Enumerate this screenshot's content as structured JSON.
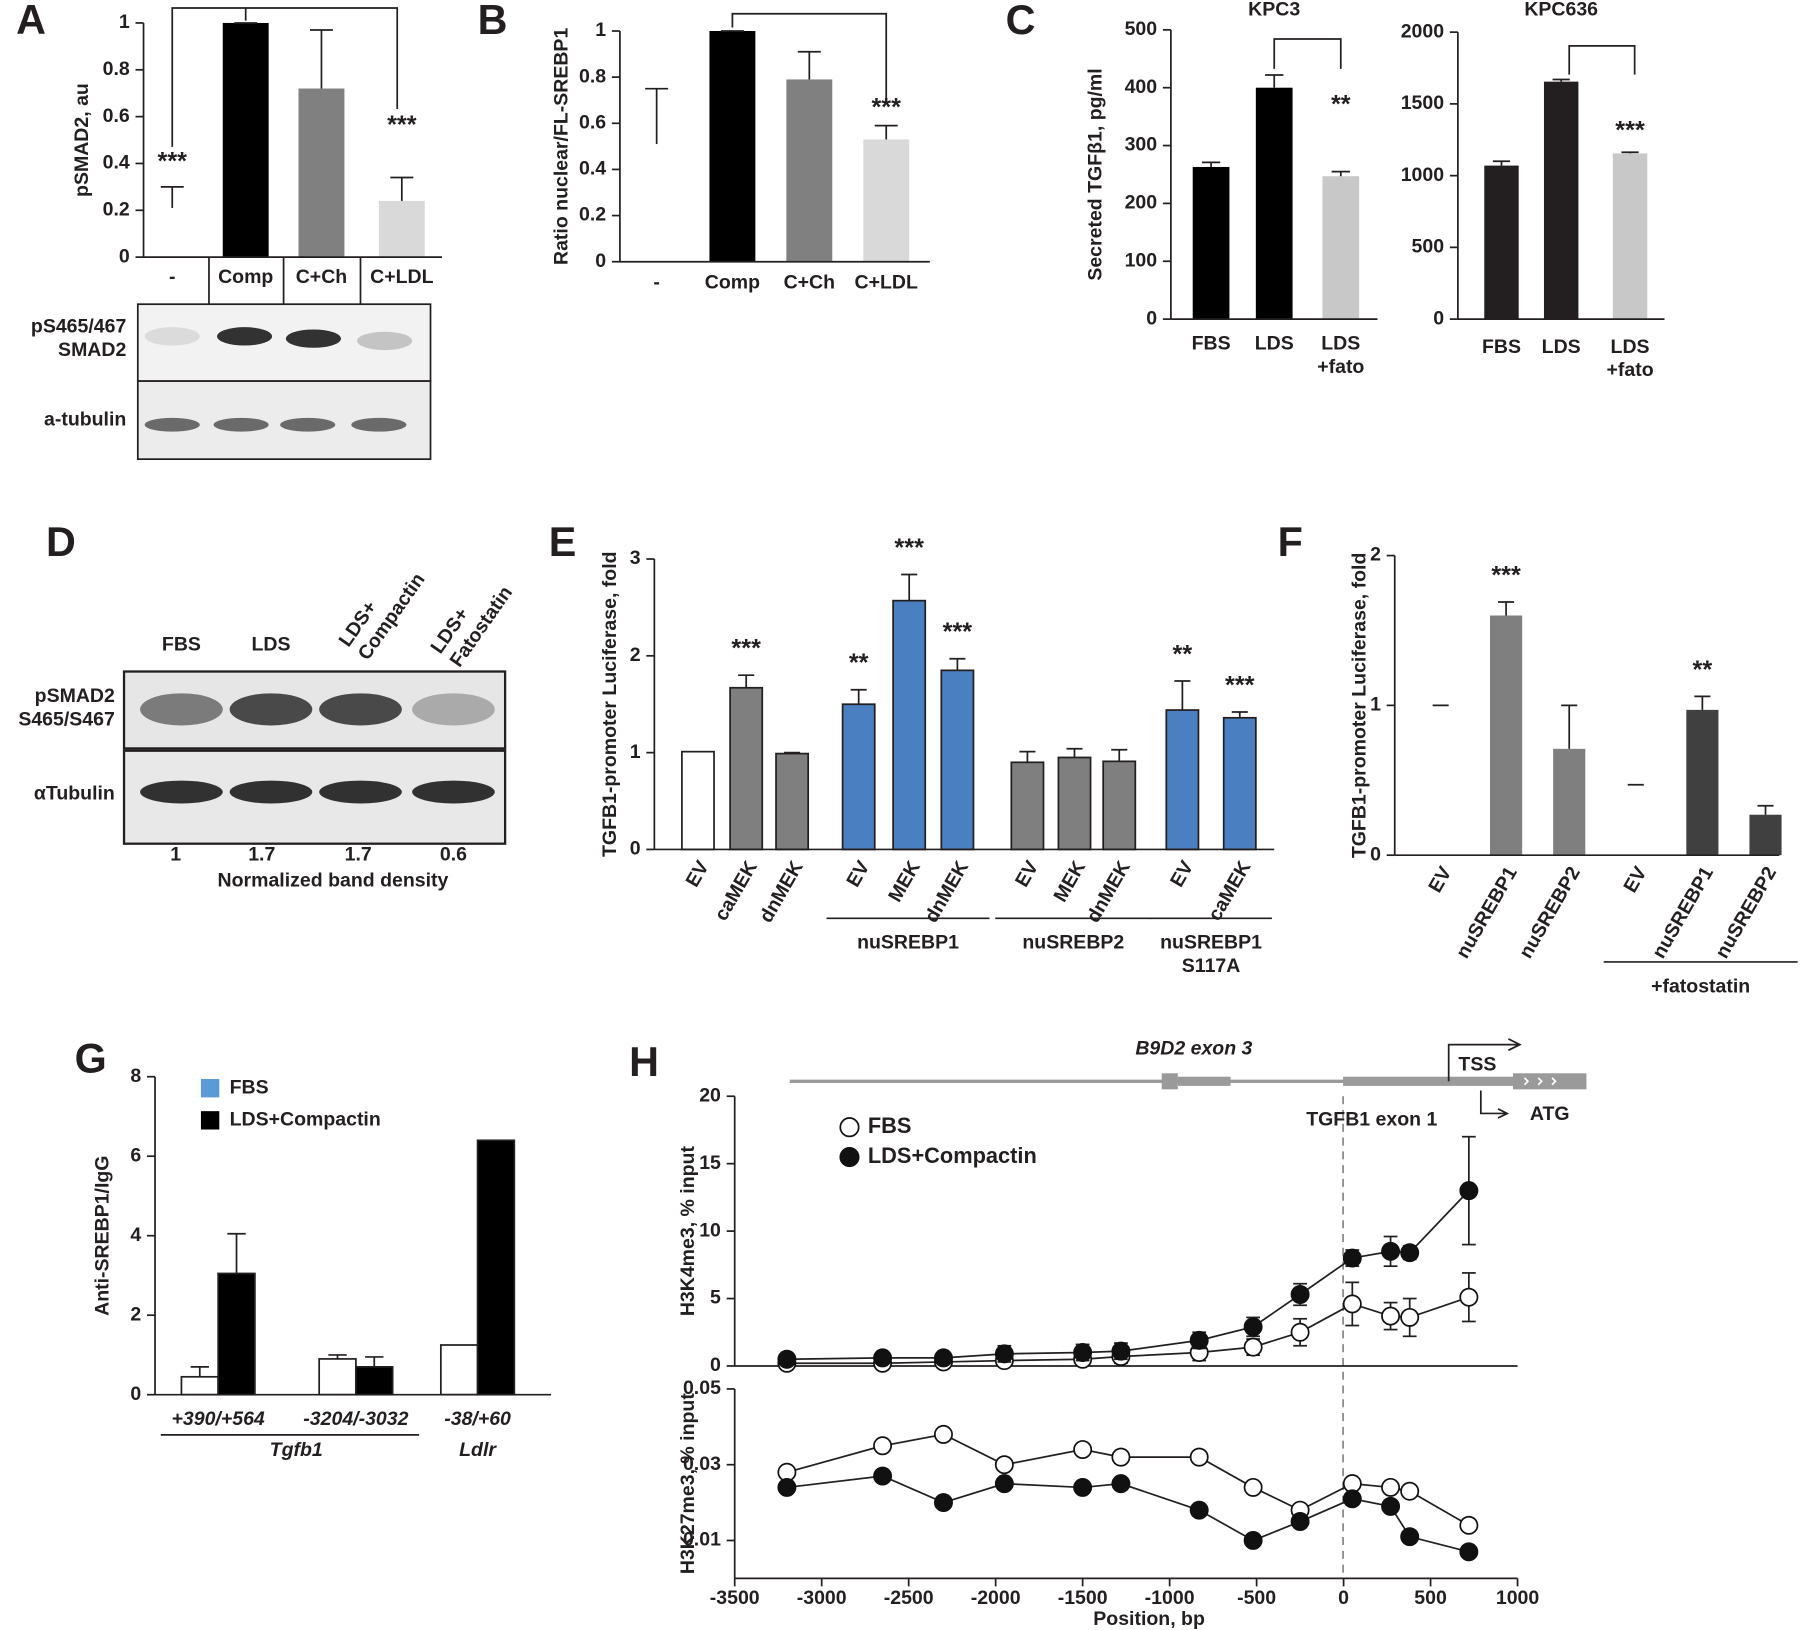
{
  "panel_labels": [
    "A",
    "B",
    "C",
    "D",
    "E",
    "F",
    "G",
    "H"
  ],
  "blot_A": {
    "rows": [
      "pS465/467\nSMAD2",
      "a-tubulin"
    ]
  },
  "blot_D": {
    "lanes": [
      "FBS",
      "LDS",
      "LDS+\nCompactin",
      "LDS+\nFatostatin"
    ],
    "rows": [
      "pSMAD2\nS465/S467",
      "αTubulin"
    ],
    "densities": [
      1,
      1.7,
      1.7,
      0.6
    ],
    "density_label": "Normalized band density"
  },
  "gene_diagram": {
    "labels": [
      "B9D2 exon 3",
      "TGFB1 exon 1",
      "TSS",
      "ATG"
    ]
  },
  "chart_data": [
    {
      "type": "bar",
      "ylabel": "pSMAD2, au",
      "categories": [
        "-",
        "Comp",
        "C+Ch",
        "C+LDL"
      ],
      "values": [
        0.21,
        1,
        0.72,
        0.24
      ],
      "errors": [
        0.09,
        0,
        0.25,
        0.1
      ],
      "colors": [
        "#ffffff",
        "#000000",
        "#808080",
        "#d9d9d9"
      ],
      "annotations": [
        "***",
        null,
        null,
        "***"
      ],
      "ylim": [
        0,
        1
      ],
      "yticks": [
        0,
        0.2,
        0.4,
        0.6,
        0.8,
        1
      ]
    },
    {
      "type": "bar",
      "ylabel": "Ratio nuclear/FL-SREBP1",
      "categories": [
        "-",
        "Comp",
        "C+Ch",
        "C+LDL"
      ],
      "values": [
        0.51,
        1,
        0.79,
        0.53
      ],
      "errors": [
        0.24,
        0,
        0.12,
        0.06
      ],
      "colors": [
        "#ffffff",
        "#000000",
        "#808080",
        "#d9d9d9"
      ],
      "annotations": [
        null,
        null,
        null,
        "***"
      ],
      "ylim": [
        0,
        1
      ],
      "yticks": [
        0,
        0.2,
        0.4,
        0.6,
        0.8,
        1
      ]
    },
    {
      "type": "bar",
      "title": "KPC3",
      "ylabel": "Secreted TGFβ1, pg/ml",
      "categories": [
        "FBS",
        "LDS",
        "LDS\n+fato"
      ],
      "values": [
        263,
        400,
        247
      ],
      "errors": [
        8,
        22,
        8
      ],
      "colors": [
        "#000000",
        "#000000",
        "#c8c8c8"
      ],
      "annotations": [
        null,
        null,
        "**"
      ],
      "ylim": [
        0,
        500
      ],
      "yticks": [
        0,
        100,
        200,
        300,
        400,
        500
      ]
    },
    {
      "type": "bar",
      "title": "KPC636",
      "categories": [
        "FBS",
        "LDS",
        "LDS\n+fato"
      ],
      "values": [
        1070,
        1655,
        1155
      ],
      "errors": [
        30,
        15,
        8
      ],
      "colors": [
        "#231f20",
        "#231f20",
        "#c8c8c8"
      ],
      "annotations": [
        null,
        null,
        "***"
      ],
      "ylim": [
        0,
        2000
      ],
      "yticks": [
        0,
        500,
        1000,
        1500,
        2000
      ]
    },
    {
      "type": "bar",
      "ylabel": "TGFB1-promoter Luciferase, fold",
      "categories": [
        "EV",
        "caMEK",
        "dnMEK",
        "EV",
        "MEK",
        "dnMEK",
        "EV",
        "MEK",
        "dnMEK",
        "EV",
        "caMEK"
      ],
      "values": [
        1.01,
        1.67,
        0.99,
        1.5,
        2.57,
        1.85,
        0.9,
        0.95,
        0.91,
        1.44,
        1.36
      ],
      "errors": [
        null,
        0.13,
        0.01,
        0.15,
        0.27,
        0.12,
        0.11,
        0.09,
        0.12,
        0.3,
        0.06
      ],
      "colors": [
        "#ffffff",
        "#7f7f7f",
        "#7f7f7f",
        "#4a7fc1",
        "#4a7fc1",
        "#4a7fc1",
        "#7f7f7f",
        "#7f7f7f",
        "#7f7f7f",
        "#4a7fc1",
        "#4a7fc1"
      ],
      "annotations": [
        null,
        "***",
        null,
        "**",
        "***",
        "***",
        null,
        null,
        null,
        "**",
        "***"
      ],
      "groups": [
        "nuSREBP1",
        "nuSREBP2",
        "nuSREBP1\nS117A"
      ],
      "ylim": [
        0,
        3
      ],
      "yticks": [
        0,
        1,
        2,
        3
      ]
    },
    {
      "type": "bar",
      "ylabel": "TGFB1-promoter Luciferase, fold",
      "categories": [
        "EV",
        "nuSREBP1",
        "nuSREBP2",
        "EV",
        "nuSREBP1",
        "nuSREBP2"
      ],
      "values": [
        1,
        1.6,
        0.71,
        0.47,
        0.97,
        0.27
      ],
      "errors": [
        0,
        0.09,
        0.29,
        0,
        0.09,
        0.06
      ],
      "colors": [
        "#ffffff",
        "#7f7f7f",
        "#7f7f7f",
        "#ffffff",
        "#404040",
        "#404040"
      ],
      "annotations": [
        null,
        "***",
        null,
        null,
        "**",
        null
      ],
      "groups": [
        "+fatostatin"
      ],
      "ylim": [
        0,
        2
      ],
      "yticks": [
        0,
        1,
        2
      ]
    },
    {
      "type": "grouped_bar",
      "ylabel": "Anti-SREBP1/IgG",
      "categories": [
        "+390/+564",
        "-3204/-3032",
        "-38/+60"
      ],
      "groups": [
        "Tgfb1",
        "Ldlr"
      ],
      "series": [
        {
          "name": "FBS",
          "color": "#ffffff",
          "legend_color": "#5b9bd5",
          "values": [
            0.45,
            0.9,
            1.25
          ],
          "errors": [
            0.25,
            0.1,
            null
          ]
        },
        {
          "name": "LDS+Compactin",
          "color": "#000000",
          "values": [
            3.05,
            0.7,
            6.4
          ],
          "errors": [
            1.0,
            0.25,
            null
          ]
        }
      ],
      "ylim": [
        0,
        8
      ],
      "yticks": [
        0,
        2,
        4,
        6,
        8
      ]
    },
    {
      "type": "line",
      "ylabel": "H3K4me3, % input",
      "x": [
        -3200,
        -2650,
        -2300,
        -1950,
        -1500,
        -1280,
        -830,
        -520,
        -250,
        50,
        270,
        380,
        720
      ],
      "series": [
        {
          "name": "FBS",
          "marker": "open",
          "values": [
            0.2,
            0.2,
            0.3,
            0.4,
            0.5,
            0.7,
            1.0,
            1.4,
            2.5,
            4.6,
            3.7,
            3.6,
            5.1
          ],
          "errors": [
            0,
            0,
            0,
            0,
            0.4,
            0.5,
            0.6,
            0.6,
            1,
            1.6,
            1,
            1.4,
            1.8
          ]
        },
        {
          "name": "LDS+Compactin",
          "marker": "filled",
          "values": [
            0.5,
            0.6,
            0.6,
            0.9,
            1.0,
            1.1,
            1.9,
            2.9,
            5.3,
            8.0,
            8.5,
            8.4,
            13
          ],
          "errors": [
            0.3,
            0.4,
            0.4,
            0.6,
            0.6,
            0.6,
            0.6,
            0.7,
            0.8,
            0.6,
            1.1,
            0.5,
            4
          ]
        }
      ],
      "xlim": [
        -3500,
        1000
      ],
      "ylim": [
        0,
        20
      ],
      "yticks": [
        0,
        5,
        10,
        15,
        20
      ]
    },
    {
      "type": "line",
      "ylabel": "H3K27me3, % input",
      "xlabel": "Position, bp",
      "x": [
        -3200,
        -2650,
        -2300,
        -1950,
        -1500,
        -1280,
        -830,
        -520,
        -250,
        50,
        270,
        380,
        720
      ],
      "series": [
        {
          "marker": "open",
          "values": [
            0.028,
            0.035,
            0.038,
            0.03,
            0.034,
            0.032,
            0.032,
            0.024,
            0.018,
            0.025,
            0.024,
            0.023,
            0.014
          ]
        },
        {
          "marker": "filled",
          "values": [
            0.024,
            0.027,
            0.02,
            0.025,
            0.024,
            0.025,
            0.018,
            0.01,
            0.015,
            0.021,
            0.019,
            0.011,
            0.007
          ]
        }
      ],
      "xlim": [
        -3500,
        1000
      ],
      "xticks": [
        -3500,
        -3000,
        -2500,
        -2000,
        -1500,
        -1000,
        -500,
        0,
        500,
        1000
      ],
      "ylim": [
        0,
        0.05
      ],
      "yticks": [
        0.01,
        0.03,
        0.05
      ]
    }
  ]
}
